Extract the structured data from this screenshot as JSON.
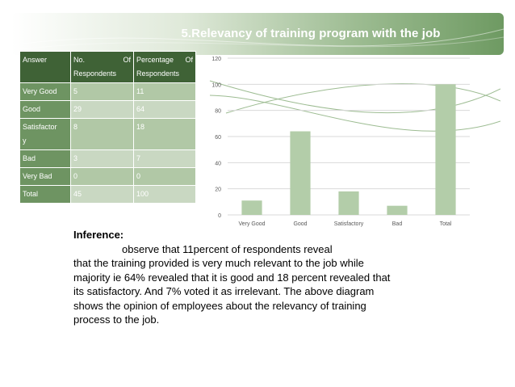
{
  "title": "5.Relevancy of training program with the job",
  "table": {
    "headers": [
      "Answer",
      "No. Of Respondents",
      "Percentage Of Respondents"
    ],
    "header_lines": [
      [
        "Answer"
      ],
      [
        "No.",
        "Of",
        "Respondents"
      ],
      [
        "Percentage",
        "Of",
        "Respondents"
      ]
    ],
    "rows": [
      {
        "answer": "Very Good",
        "count": "5",
        "percent": "11"
      },
      {
        "answer": "Good",
        "count": "29",
        "percent": "64"
      },
      {
        "answer": "Satisfactory",
        "answer_wrapped": [
          "Satisfactor",
          "y"
        ],
        "count": "8",
        "percent": "18"
      },
      {
        "answer": "Bad",
        "count": "3",
        "percent": "7"
      },
      {
        "answer": "Very Bad",
        "count": "0",
        "percent": "0"
      },
      {
        "answer": "Total",
        "count": "45",
        "percent": "100"
      }
    ]
  },
  "chart_data": {
    "type": "bar",
    "categories": [
      "Very Good",
      "Good",
      "Satisfactory",
      "Bad",
      "Total"
    ],
    "values": [
      11,
      64,
      18,
      7,
      100
    ],
    "ylim": [
      0,
      120
    ],
    "yticks": [
      0,
      20,
      40,
      60,
      80,
      100,
      120
    ],
    "grid": true,
    "bar_color": "#b3cda9",
    "title": "",
    "xlabel": "",
    "ylabel": ""
  },
  "inference": {
    "label": "Inference:",
    "line1": "observe that 11percent of respondents reveal",
    "rest": "that the training provided is very much relevant to the job while majority ie 64% revealed that it is good and 18 percent revealed that its satisfactory. And 7% voted it as irrelevant. The above diagram shows the opinion of employees about the relevancy of training process to the job."
  },
  "colors": {
    "table_header": "#3f6236",
    "table_label": "#6e9462",
    "banner": "#6e9a62"
  }
}
